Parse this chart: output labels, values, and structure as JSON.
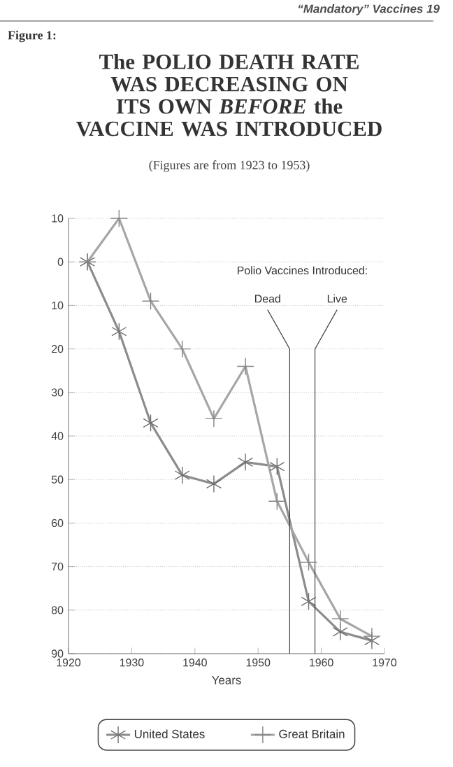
{
  "chart_data": {
    "type": "line",
    "title": "The POLIO DEATH RATE WAS DECREASING ON ITS OWN *BEFORE* the VACCINE WAS INTRODUCED",
    "subtitle": "(Figures are from 1923 to 1953)",
    "xlabel": "Years",
    "annotations": [
      "“Mandatory” Vaccines 19",
      "Figure 1:",
      "Polio Vaccines Introduced:"
    ],
    "x": [
      1923,
      1928,
      1933,
      1938,
      1943,
      1948,
      1953,
      1958,
      1963,
      1968
    ],
    "series": [
      {
        "name": "United States",
        "color": "#8c8c8c",
        "values": [
          0,
          16,
          37,
          49,
          51,
          46,
          47,
          78,
          85,
          87
        ]
      },
      {
        "name": "Great Britain",
        "color": "#a6a6a6",
        "values": [
          0,
          -10,
          9,
          20,
          36,
          24,
          55,
          69,
          82,
          86
        ]
      }
    ],
    "xlim": [
      1920,
      1970
    ],
    "xticks": [
      1920,
      1930,
      1940,
      1950,
      1960,
      1970
    ],
    "ylim": [
      90,
      -10
    ],
    "yticks": [
      {
        "value": -10,
        "label": "10"
      },
      0,
      10,
      20,
      30,
      40,
      50,
      60,
      70,
      80,
      90
    ],
    "ref_lines": [
      {
        "axis": "x",
        "value": 1955,
        "label": "Dead"
      },
      {
        "axis": "x",
        "value": 1959,
        "label": "Live"
      }
    ],
    "grid": "y",
    "marker": "cross",
    "legend": "bottom",
    "line_style": "solid"
  }
}
